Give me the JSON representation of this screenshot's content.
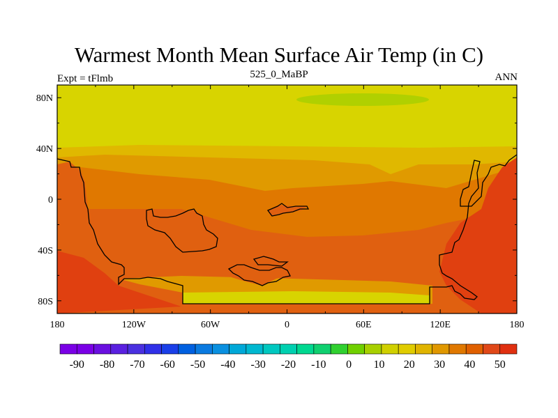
{
  "title": "Warmest Month Mean Surface Air Temp (in C)",
  "left_label": "Expt = tFlmb",
  "center_label": "525_0_MaBP",
  "right_label": "ANN",
  "x_tick_labels": [
    "180",
    "120W",
    "60W",
    "0",
    "60E",
    "120E",
    "180"
  ],
  "y_tick_labels": [
    "80N",
    "40N",
    "0",
    "40S",
    "80S"
  ],
  "colorbar": {
    "labels": [
      "-90",
      "-80",
      "-70",
      "-60",
      "-50",
      "-40",
      "-30",
      "-20",
      "-10",
      "0",
      "10",
      "20",
      "30",
      "40",
      "50"
    ],
    "colors": [
      "#7a00e6",
      "#7a00e6",
      "#6a10e0",
      "#5a20e0",
      "#4a30e0",
      "#3030e8",
      "#1a3fe8",
      "#0060e0",
      "#0a7ae0",
      "#0a90e0",
      "#00a8d8",
      "#00b8d0",
      "#00c8c0",
      "#00d0b0",
      "#00d890",
      "#10d070",
      "#30d030",
      "#70d000",
      "#a8d000",
      "#d0d000",
      "#e0cc00",
      "#e0b400",
      "#e09800",
      "#e07800",
      "#e06000",
      "#e04818",
      "#e03010"
    ],
    "levels": [
      -90,
      -80,
      -70,
      -60,
      -50,
      -40,
      -30,
      -20,
      -10,
      0,
      10,
      20,
      30,
      40,
      50
    ]
  },
  "map": {
    "projection": "cylindrical-equidistant",
    "lon_range": [
      -180,
      180
    ],
    "lat_range": [
      -90,
      90
    ],
    "band_colors": {
      "north_yellow": "#d8d400",
      "green_patch": "#b0d000",
      "gold": "#e0b800",
      "orange_light": "#e09a00",
      "orange": "#e07800",
      "orange_dark": "#e06010",
      "red": "#e04010",
      "red_dark": "#e03010"
    }
  }
}
